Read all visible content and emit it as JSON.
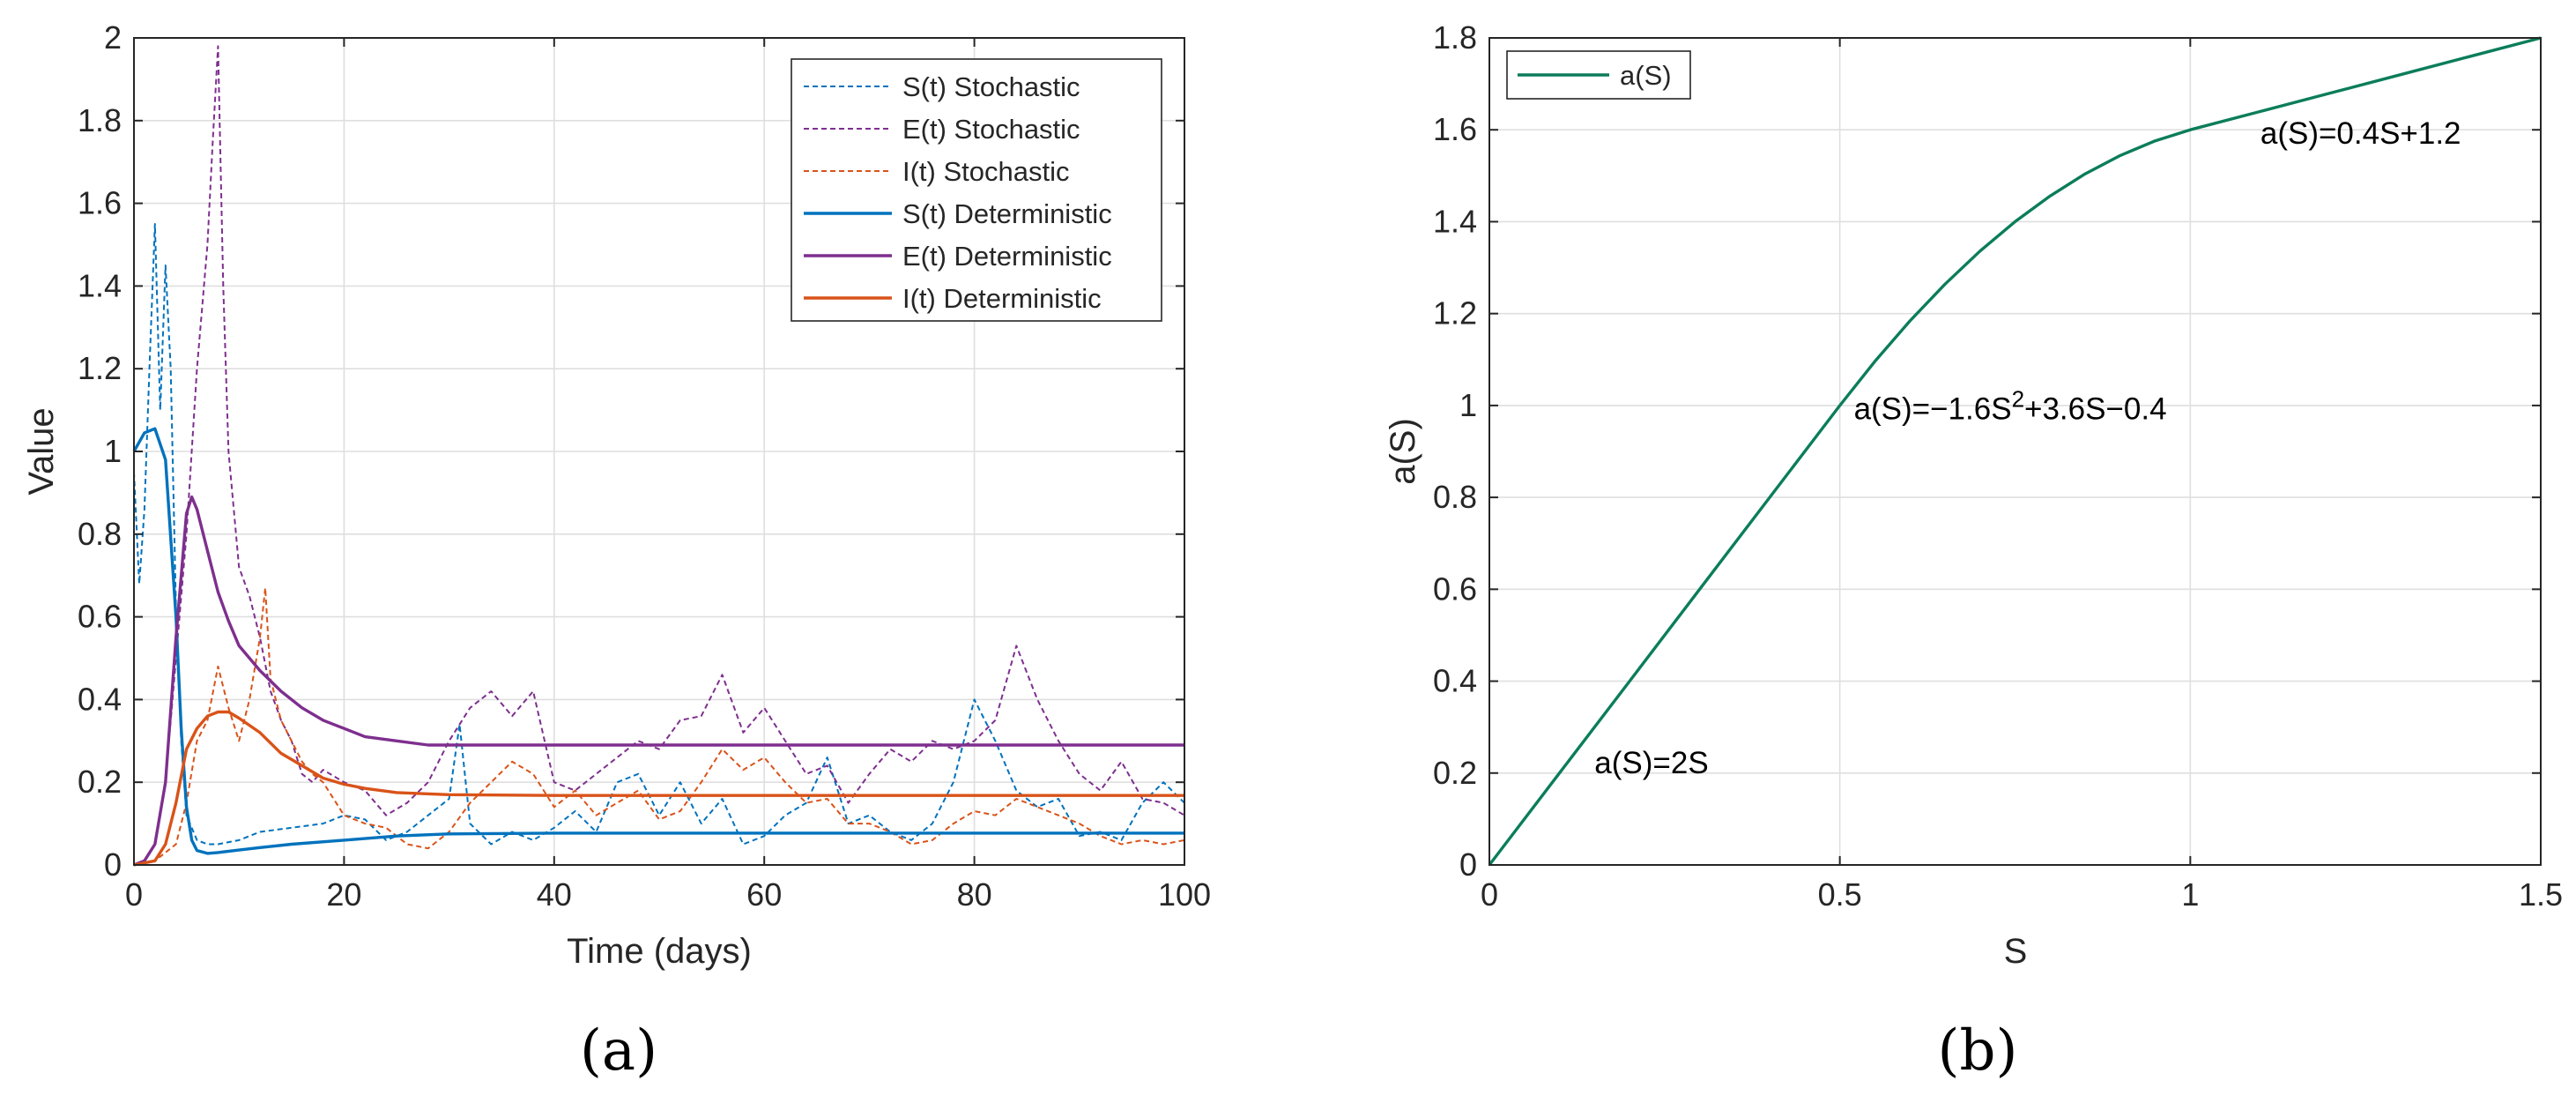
{
  "chart_data": [
    {
      "panel": "(a)",
      "type": "line",
      "xlabel": "Time (days)",
      "ylabel": "Value",
      "xlim": [
        0,
        100
      ],
      "ylim": [
        0,
        2
      ],
      "xticks": [
        0,
        20,
        40,
        60,
        80,
        100
      ],
      "yticks": [
        0,
        0.2,
        0.4,
        0.6,
        0.8,
        1,
        1.2,
        1.4,
        1.6,
        1.8,
        2
      ],
      "grid": true,
      "legend_position": "top-right",
      "series": [
        {
          "name": "S(t) Stochastic",
          "color": "#0072BD",
          "style": "dashed",
          "x": [
            0,
            0.5,
            1,
            1.5,
            2,
            2.5,
            3,
            3.5,
            4,
            4.5,
            5,
            6,
            7,
            8,
            10,
            12,
            15,
            18,
            20,
            22,
            24,
            26,
            28,
            30,
            31,
            32,
            34,
            36,
            38,
            40,
            42,
            44,
            46,
            48,
            50,
            52,
            54,
            56,
            58,
            60,
            62,
            64,
            66,
            68,
            70,
            72,
            74,
            76,
            78,
            80,
            81,
            82,
            84,
            86,
            88,
            90,
            92,
            94,
            96,
            98,
            100
          ],
          "y": [
            0.95,
            0.68,
            0.86,
            1.22,
            1.55,
            1.1,
            1.45,
            1.2,
            0.62,
            0.3,
            0.12,
            0.06,
            0.05,
            0.05,
            0.06,
            0.08,
            0.09,
            0.1,
            0.12,
            0.11,
            0.06,
            0.08,
            0.12,
            0.16,
            0.34,
            0.1,
            0.05,
            0.08,
            0.06,
            0.09,
            0.13,
            0.08,
            0.2,
            0.22,
            0.12,
            0.2,
            0.1,
            0.16,
            0.05,
            0.07,
            0.12,
            0.15,
            0.26,
            0.1,
            0.12,
            0.08,
            0.06,
            0.1,
            0.2,
            0.4,
            0.35,
            0.3,
            0.18,
            0.14,
            0.16,
            0.07,
            0.08,
            0.06,
            0.15,
            0.2,
            0.15
          ]
        },
        {
          "name": "E(t) Stochastic",
          "color": "#7E2F8E",
          "style": "dashed",
          "x": [
            0,
            1,
            2,
            3,
            4,
            5,
            6,
            7,
            7.5,
            8,
            8.5,
            9,
            10,
            11,
            12,
            13,
            14,
            15,
            16,
            17,
            18,
            20,
            22,
            24,
            26,
            28,
            30,
            32,
            34,
            36,
            38,
            40,
            42,
            44,
            46,
            48,
            50,
            52,
            54,
            56,
            58,
            60,
            62,
            64,
            66,
            68,
            70,
            72,
            74,
            76,
            78,
            80,
            82,
            84,
            86,
            88,
            90,
            92,
            94,
            96,
            98,
            100
          ],
          "y": [
            0,
            0.01,
            0.05,
            0.2,
            0.5,
            0.8,
            1.2,
            1.5,
            1.75,
            1.98,
            1.4,
            1.0,
            0.72,
            0.65,
            0.55,
            0.42,
            0.35,
            0.3,
            0.22,
            0.2,
            0.23,
            0.2,
            0.18,
            0.12,
            0.15,
            0.2,
            0.3,
            0.38,
            0.42,
            0.36,
            0.42,
            0.2,
            0.18,
            0.22,
            0.26,
            0.3,
            0.28,
            0.35,
            0.36,
            0.46,
            0.32,
            0.38,
            0.3,
            0.22,
            0.24,
            0.15,
            0.22,
            0.28,
            0.25,
            0.3,
            0.28,
            0.3,
            0.35,
            0.53,
            0.4,
            0.3,
            0.22,
            0.18,
            0.25,
            0.16,
            0.15,
            0.12
          ]
        },
        {
          "name": "I(t) Stochastic",
          "color": "#D95319",
          "style": "dashed",
          "x": [
            0,
            2,
            4,
            5,
            6,
            7,
            8,
            9,
            10,
            11,
            12,
            12.5,
            13,
            14,
            15,
            16,
            17,
            18,
            20,
            22,
            24,
            26,
            28,
            30,
            32,
            34,
            36,
            38,
            40,
            42,
            44,
            46,
            48,
            50,
            52,
            54,
            56,
            58,
            60,
            62,
            64,
            66,
            68,
            70,
            72,
            74,
            76,
            78,
            80,
            82,
            84,
            86,
            88,
            90,
            92,
            94,
            96,
            98,
            100
          ],
          "y": [
            0,
            0.01,
            0.05,
            0.15,
            0.3,
            0.35,
            0.48,
            0.38,
            0.3,
            0.4,
            0.55,
            0.67,
            0.45,
            0.35,
            0.3,
            0.25,
            0.22,
            0.2,
            0.12,
            0.1,
            0.09,
            0.05,
            0.04,
            0.08,
            0.15,
            0.2,
            0.25,
            0.22,
            0.14,
            0.18,
            0.12,
            0.15,
            0.18,
            0.11,
            0.13,
            0.2,
            0.28,
            0.23,
            0.26,
            0.2,
            0.15,
            0.16,
            0.1,
            0.1,
            0.08,
            0.05,
            0.06,
            0.1,
            0.13,
            0.12,
            0.16,
            0.14,
            0.12,
            0.1,
            0.07,
            0.05,
            0.06,
            0.05,
            0.06
          ]
        },
        {
          "name": "S(t) Deterministic",
          "color": "#0072BD",
          "style": "solid",
          "x": [
            0,
            1,
            2,
            3,
            4,
            4.5,
            5,
            5.5,
            6,
            7,
            8,
            10,
            12,
            15,
            20,
            25,
            30,
            40,
            50,
            60,
            80,
            100
          ],
          "y": [
            1.0,
            1.045,
            1.055,
            0.98,
            0.6,
            0.33,
            0.14,
            0.06,
            0.035,
            0.028,
            0.03,
            0.036,
            0.042,
            0.05,
            0.06,
            0.07,
            0.075,
            0.077,
            0.077,
            0.077,
            0.077,
            0.077
          ]
        },
        {
          "name": "E(t) Deterministic",
          "color": "#7E2F8E",
          "style": "solid",
          "x": [
            0,
            1,
            2,
            3,
            4,
            5,
            5.5,
            6,
            7,
            8,
            9,
            10,
            12,
            14,
            16,
            18,
            20,
            22,
            25,
            28,
            30,
            35,
            40,
            60,
            80,
            100
          ],
          "y": [
            0,
            0.01,
            0.05,
            0.2,
            0.55,
            0.85,
            0.89,
            0.86,
            0.76,
            0.66,
            0.59,
            0.53,
            0.47,
            0.42,
            0.38,
            0.35,
            0.33,
            0.31,
            0.3,
            0.29,
            0.29,
            0.29,
            0.29,
            0.29,
            0.29,
            0.29
          ]
        },
        {
          "name": "I(t) Deterministic",
          "color": "#D95319",
          "style": "solid",
          "x": [
            0,
            2,
            3,
            4,
            5,
            6,
            7,
            8,
            9,
            10,
            12,
            14,
            16,
            18,
            20,
            22,
            25,
            30,
            40,
            60,
            80,
            100
          ],
          "y": [
            0,
            0.01,
            0.05,
            0.15,
            0.28,
            0.33,
            0.36,
            0.37,
            0.37,
            0.355,
            0.32,
            0.27,
            0.24,
            0.21,
            0.195,
            0.185,
            0.175,
            0.17,
            0.168,
            0.168,
            0.168,
            0.168
          ]
        }
      ]
    },
    {
      "panel": "(b)",
      "type": "line",
      "xlabel": "S",
      "ylabel": "a(S)",
      "xlim": [
        0,
        1.5
      ],
      "ylim": [
        0,
        1.8
      ],
      "xticks": [
        0,
        0.5,
        1,
        1.5
      ],
      "yticks": [
        0,
        0.2,
        0.4,
        0.6,
        0.8,
        1,
        1.2,
        1.4,
        1.6,
        1.8
      ],
      "grid": true,
      "legend_position": "top-left",
      "series": [
        {
          "name": "a(S)",
          "color": "#0B7D5A",
          "style": "solid",
          "x": [
            0,
            0.1,
            0.2,
            0.3,
            0.4,
            0.5,
            0.55,
            0.6,
            0.65,
            0.7,
            0.75,
            0.8,
            0.85,
            0.9,
            0.95,
            1.0,
            1.1,
            1.2,
            1.3,
            1.4,
            1.5
          ],
          "y": [
            0,
            0.2,
            0.4,
            0.6,
            0.8,
            1.0,
            1.096,
            1.184,
            1.264,
            1.336,
            1.4,
            1.456,
            1.504,
            1.544,
            1.576,
            1.6,
            1.64,
            1.68,
            1.72,
            1.76,
            1.8
          ]
        }
      ],
      "annotations": [
        {
          "text": "a(S)=2S",
          "x": 0.15,
          "y": 0.2
        },
        {
          "text_parts": [
            "a(S)=−1.6S",
            "2",
            "+3.6S−0.4"
          ],
          "x": 0.52,
          "y": 0.97
        },
        {
          "text": "a(S)=0.4S+1.2",
          "x": 1.1,
          "y": 1.57
        }
      ]
    }
  ],
  "captions": {
    "left": "(a)",
    "right": "(b)"
  }
}
